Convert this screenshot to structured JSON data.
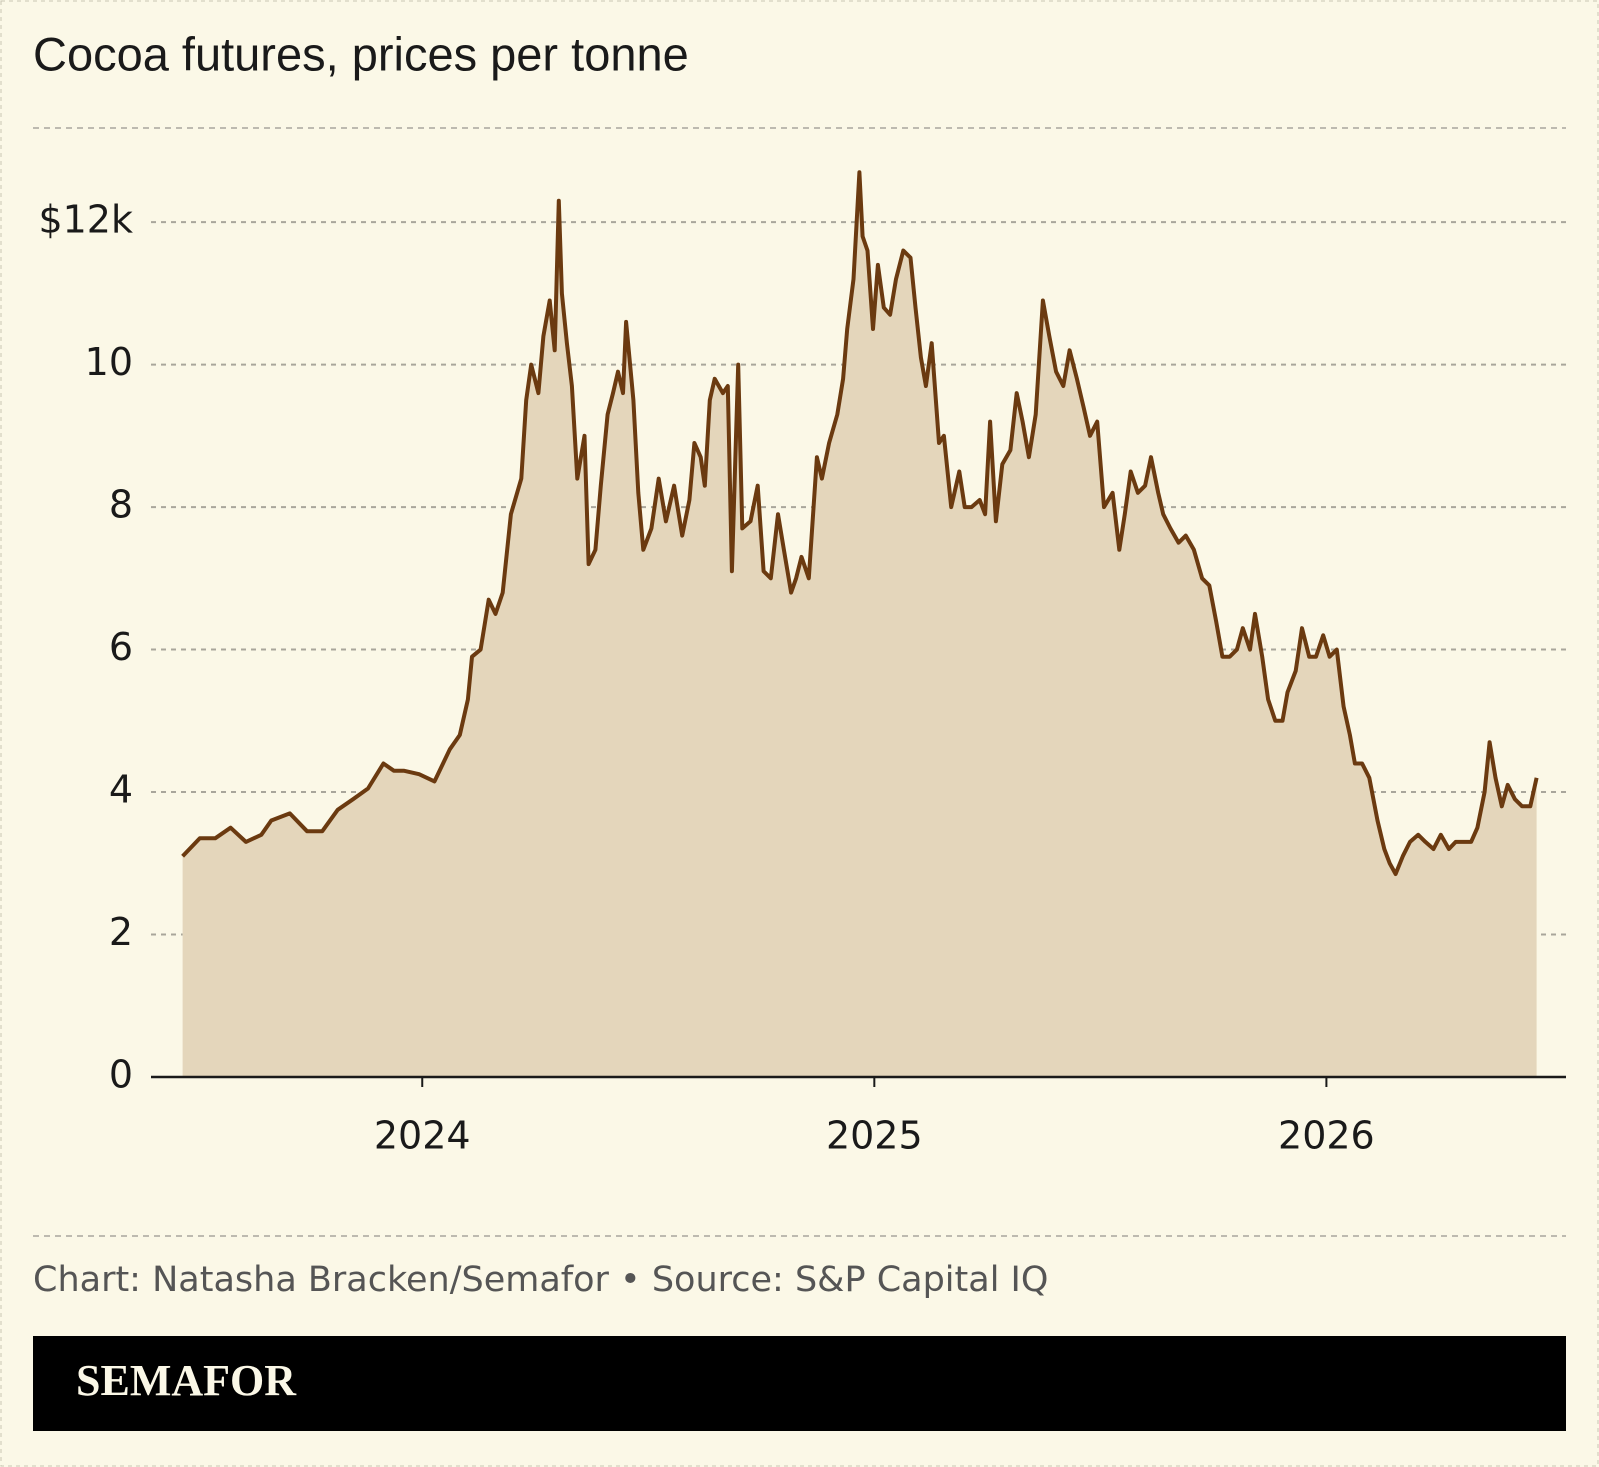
{
  "chart_data": {
    "type": "area",
    "title": "Cocoa futures, prices per tonne",
    "source": "Chart: Natasha Bracken/Semafor • Source: S&P Capital IQ",
    "brand": "SEMAFOR",
    "color": "#6b3a10",
    "fill_color": "#e4d6bb",
    "grid": true,
    "xlim": [
      2023.4,
      2026.53
    ],
    "xticks": [
      2024,
      2025,
      2026
    ],
    "ylim": [
      0,
      12.9
    ],
    "yticks": [
      0,
      2,
      4,
      6,
      8,
      10,
      {
        "value": 12,
        "label": "$12k"
      }
    ],
    "x": [
      2023.47,
      2023.508,
      2023.542,
      2023.576,
      2023.61,
      2023.644,
      2023.666,
      2023.707,
      2023.745,
      2023.779,
      2023.813,
      2023.847,
      2023.88,
      2023.914,
      2023.937,
      2023.959,
      2023.993,
      2024.027,
      2024.061,
      2024.083,
      2024.101,
      2024.11,
      2024.129,
      2024.147,
      2024.162,
      2024.178,
      2024.196,
      2024.219,
      2024.23,
      2024.241,
      2024.257,
      2024.268,
      2024.282,
      2024.293,
      2024.302,
      2024.309,
      2024.32,
      2024.331,
      2024.343,
      2024.359,
      2024.368,
      2024.383,
      2024.395,
      2024.41,
      2024.422,
      2024.433,
      2024.444,
      2024.451,
      2024.467,
      2024.478,
      2024.489,
      2024.507,
      2024.523,
      2024.539,
      2024.557,
      2024.575,
      2024.591,
      2024.602,
      2024.616,
      2024.625,
      2024.636,
      2024.647,
      2024.665,
      2024.676,
      2024.685,
      2024.699,
      2024.708,
      2024.726,
      2024.742,
      2024.755,
      2024.771,
      2024.787,
      2024.8,
      2024.816,
      2024.827,
      2024.839,
      2024.855,
      2024.873,
      2024.884,
      2024.9,
      2024.918,
      2024.931,
      2024.94,
      2024.954,
      2024.967,
      2024.974,
      2024.985,
      2024.997,
      2025.008,
      2025.021,
      2025.035,
      2025.048,
      2025.064,
      2025.08,
      2025.091,
      2025.103,
      2025.114,
      2025.127,
      2025.143,
      2025.154,
      2025.17,
      2025.188,
      2025.2,
      2025.215,
      2025.233,
      2025.245,
      2025.256,
      2025.269,
      2025.283,
      2025.301,
      2025.315,
      2025.328,
      2025.342,
      2025.357,
      2025.373,
      2025.387,
      2025.402,
      2025.418,
      2025.432,
      2025.448,
      2025.463,
      2025.477,
      2025.493,
      2025.508,
      2025.527,
      2025.542,
      2025.554,
      2025.567,
      2025.583,
      2025.599,
      2025.612,
      2025.628,
      2025.639,
      2025.655,
      2025.673,
      2025.689,
      2025.707,
      2025.725,
      2025.741,
      2025.756,
      2025.77,
      2025.786,
      2025.802,
      2025.815,
      2025.831,
      2025.842,
      2025.858,
      2025.871,
      2025.887,
      2025.903,
      2025.914,
      2025.932,
      2025.946,
      2025.962,
      2025.977,
      2025.993,
      2026.007,
      2026.023,
      2026.038,
      2026.052,
      2026.063,
      2026.079,
      2026.095,
      2026.113,
      2026.128,
      2026.14,
      2026.153,
      2026.169,
      2026.185,
      2026.203,
      2026.219,
      2026.237,
      2026.253,
      2026.271,
      2026.286,
      2026.304,
      2026.32,
      2026.334,
      2026.35,
      2026.361,
      2026.374,
      2026.388,
      2026.401,
      2026.417,
      2026.433,
      2026.451,
      2026.465
    ],
    "values": [
      3.1,
      3.35,
      3.35,
      3.5,
      3.3,
      3.4,
      3.6,
      3.7,
      3.45,
      3.45,
      3.75,
      3.9,
      4.05,
      4.4,
      4.3,
      4.3,
      4.25,
      4.15,
      4.6,
      4.8,
      5.3,
      5.9,
      6.0,
      6.7,
      6.5,
      6.8,
      7.9,
      8.4,
      9.5,
      10.0,
      9.6,
      10.4,
      10.9,
      10.2,
      12.3,
      11.0,
      10.3,
      9.7,
      8.4,
      9.0,
      7.2,
      7.4,
      8.3,
      9.3,
      9.6,
      9.9,
      9.6,
      10.6,
      9.5,
      8.2,
      7.4,
      7.7,
      8.4,
      7.8,
      8.3,
      7.6,
      8.1,
      8.9,
      8.7,
      8.3,
      9.5,
      9.8,
      9.6,
      9.7,
      7.1,
      10.0,
      7.7,
      7.8,
      8.3,
      7.1,
      7.0,
      7.9,
      7.4,
      6.8,
      7.0,
      7.3,
      7.0,
      8.7,
      8.4,
      8.9,
      9.3,
      9.8,
      10.5,
      11.2,
      12.7,
      11.8,
      11.6,
      10.5,
      11.4,
      10.8,
      10.7,
      11.2,
      11.6,
      11.5,
      10.8,
      10.1,
      9.7,
      10.3,
      8.9,
      9.0,
      8.0,
      8.5,
      8.0,
      8.0,
      8.1,
      7.9,
      9.2,
      7.8,
      8.6,
      8.8,
      9.6,
      9.2,
      8.7,
      9.3,
      10.9,
      10.4,
      9.9,
      9.7,
      10.2,
      9.8,
      9.4,
      9.0,
      9.2,
      8.0,
      8.2,
      7.4,
      7.9,
      8.5,
      8.2,
      8.3,
      8.7,
      8.2,
      7.9,
      7.7,
      7.5,
      7.6,
      7.4,
      7.0,
      6.9,
      6.4,
      5.9,
      5.9,
      6.0,
      6.3,
      6.0,
      6.5,
      5.9,
      5.3,
      5.0,
      5.0,
      5.4,
      5.7,
      6.3,
      5.9,
      5.9,
      6.2,
      5.9,
      6.0,
      5.2,
      4.8,
      4.4,
      4.4,
      4.2,
      3.6,
      3.2,
      3.0,
      2.85,
      3.1,
      3.3,
      3.4,
      3.3,
      3.2,
      3.4,
      3.2,
      3.3,
      3.3,
      3.3,
      3.5,
      4.0,
      4.7,
      4.2,
      3.8,
      4.1,
      3.9,
      3.8,
      3.8,
      4.2
    ]
  }
}
